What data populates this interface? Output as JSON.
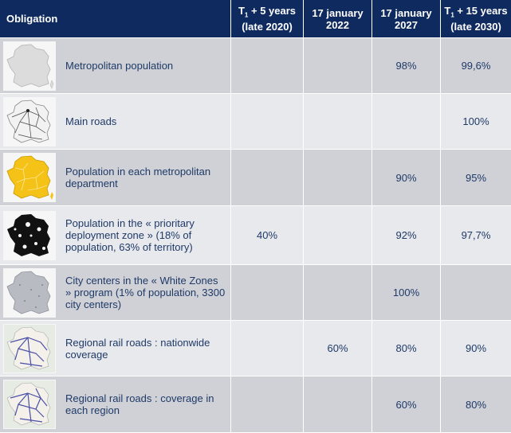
{
  "header": {
    "obligation": "Obligation",
    "col1_line1": "T",
    "col1_sub": "1",
    "col1_line1_rest": " + 5 years",
    "col1_line2": "(late 2020)",
    "col2": "17 january 2022",
    "col3": "17 january 2027",
    "col4_line1": "T",
    "col4_sub": "1",
    "col4_line1_rest": " + 15 years",
    "col4_line2": "(late 2030)"
  },
  "rows": [
    {
      "icon": "france-map-blank-icon",
      "label": "Metropolitan population",
      "c1": "",
      "c2": "",
      "c3": "98%",
      "c4": "99,6%"
    },
    {
      "icon": "france-roads-map-icon",
      "label": "Main roads",
      "c1": "",
      "c2": "",
      "c3": "",
      "c4": "100%"
    },
    {
      "icon": "france-departments-map-icon",
      "label": "Population in each metropolitan department",
      "c1": "",
      "c2": "",
      "c3": "90%",
      "c4": "95%"
    },
    {
      "icon": "france-priority-zone-map-icon",
      "label": "Population in the « prioritary deployment zone » (18% of population, 63% of territory)",
      "c1": "40%",
      "c2": "",
      "c3": "92%",
      "c4": "97,7%"
    },
    {
      "icon": "france-white-zones-map-icon",
      "label": "City centers in the « White Zones » program (1% of population, 3300 city centers)",
      "c1": "",
      "c2": "",
      "c3": "100%",
      "c4": ""
    },
    {
      "icon": "france-rail-map-icon",
      "label": "Regional rail roads : nationwide coverage",
      "c1": "",
      "c2": "60%",
      "c3": "80%",
      "c4": "90%"
    },
    {
      "icon": "france-rail-region-map-icon",
      "label": "Regional rail roads : coverage in each region",
      "c1": "",
      "c2": "",
      "c3": "60%",
      "c4": "80%"
    }
  ],
  "colors": {
    "header_bg": "#0f2a5e",
    "row_dark": "#cfd1d6",
    "row_light": "#e8e9ec",
    "text": "#1f3a68",
    "yellow": "#f5c218"
  }
}
